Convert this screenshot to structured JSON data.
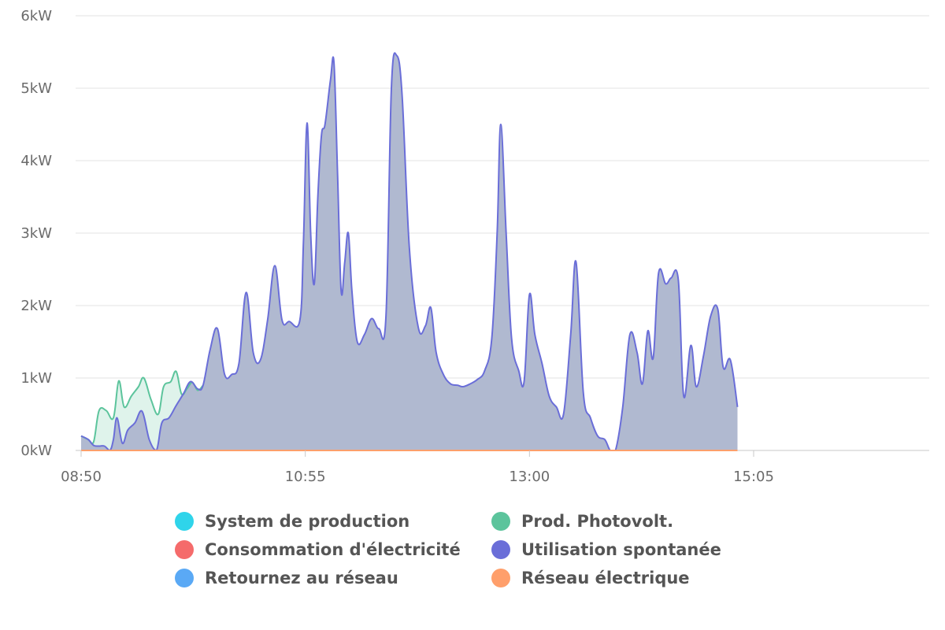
{
  "chart_data": {
    "type": "area",
    "ylim": [
      0,
      6
    ],
    "y_unit": "kW",
    "y_ticks": [
      {
        "value": 0,
        "label": "0kW"
      },
      {
        "value": 1,
        "label": "1kW"
      },
      {
        "value": 2,
        "label": "2kW"
      },
      {
        "value": 3,
        "label": "3kW"
      },
      {
        "value": 4,
        "label": "4kW"
      },
      {
        "value": 5,
        "label": "5kW"
      },
      {
        "value": 6,
        "label": "6kW"
      }
    ],
    "x_range": [
      "08:50",
      "16:45"
    ],
    "x_ticks": [
      "08:50",
      "10:55",
      "13:00",
      "15:05"
    ],
    "grid": true,
    "legend_placement": "bottom",
    "series": [
      {
        "name": "Prod. Photovolt.",
        "color": "#5cc49c",
        "fill": "#dff3eb",
        "points": [
          [
            "08:50",
            0.2
          ],
          [
            "08:54",
            0.15
          ],
          [
            "08:57",
            0.12
          ],
          [
            "09:00",
            0.55
          ],
          [
            "09:04",
            0.55
          ],
          [
            "09:08",
            0.45
          ],
          [
            "09:11",
            0.96
          ],
          [
            "09:14",
            0.6
          ],
          [
            "09:18",
            0.75
          ],
          [
            "09:22",
            0.88
          ],
          [
            "09:25",
            1.0
          ],
          [
            "09:29",
            0.7
          ],
          [
            "09:33",
            0.5
          ],
          [
            "09:36",
            0.88
          ],
          [
            "09:40",
            0.95
          ],
          [
            "09:43",
            1.09
          ],
          [
            "09:46",
            0.78
          ],
          [
            "09:49",
            0.85
          ],
          [
            "09:52",
            0.94
          ],
          [
            "09:55",
            0.83
          ],
          [
            "09:58",
            0.9
          ]
        ]
      },
      {
        "name": "Utilisation spontanée",
        "color": "#6a6ed8",
        "fill": "#b0b9d0",
        "points": [
          [
            "08:50",
            0.2
          ],
          [
            "08:54",
            0.15
          ],
          [
            "08:57",
            0.07
          ],
          [
            "09:00",
            0.06
          ],
          [
            "09:03",
            0.06
          ],
          [
            "09:06",
            0.0
          ],
          [
            "09:08",
            0.15
          ],
          [
            "09:10",
            0.45
          ],
          [
            "09:13",
            0.1
          ],
          [
            "09:16",
            0.28
          ],
          [
            "09:20",
            0.38
          ],
          [
            "09:24",
            0.54
          ],
          [
            "09:28",
            0.15
          ],
          [
            "09:32",
            0.0
          ],
          [
            "09:35",
            0.38
          ],
          [
            "09:39",
            0.45
          ],
          [
            "09:43",
            0.62
          ],
          [
            "09:47",
            0.78
          ],
          [
            "09:51",
            0.95
          ],
          [
            "09:55",
            0.85
          ],
          [
            "09:58",
            0.9
          ],
          [
            "10:02",
            1.4
          ],
          [
            "10:06",
            1.68
          ],
          [
            "10:10",
            1.05
          ],
          [
            "10:14",
            1.05
          ],
          [
            "10:18",
            1.2
          ],
          [
            "10:22",
            2.18
          ],
          [
            "10:26",
            1.35
          ],
          [
            "10:30",
            1.25
          ],
          [
            "10:34",
            1.8
          ],
          [
            "10:38",
            2.55
          ],
          [
            "10:42",
            1.8
          ],
          [
            "10:46",
            1.78
          ],
          [
            "10:52",
            1.8
          ],
          [
            "10:54",
            2.9
          ],
          [
            "10:56",
            4.52
          ],
          [
            "10:58",
            3.0
          ],
          [
            "11:00",
            2.3
          ],
          [
            "11:02",
            3.5
          ],
          [
            "11:04",
            4.35
          ],
          [
            "11:06",
            4.5
          ],
          [
            "11:09",
            5.1
          ],
          [
            "11:11",
            5.35
          ],
          [
            "11:13",
            3.8
          ],
          [
            "11:15",
            2.2
          ],
          [
            "11:17",
            2.6
          ],
          [
            "11:19",
            3.0
          ],
          [
            "11:21",
            2.2
          ],
          [
            "11:24",
            1.5
          ],
          [
            "11:28",
            1.6
          ],
          [
            "11:32",
            1.82
          ],
          [
            "11:36",
            1.68
          ],
          [
            "11:40",
            1.85
          ],
          [
            "11:43",
            5.0
          ],
          [
            "11:46",
            5.45
          ],
          [
            "11:49",
            4.9
          ],
          [
            "11:53",
            2.8
          ],
          [
            "11:58",
            1.7
          ],
          [
            "12:02",
            1.72
          ],
          [
            "12:05",
            1.97
          ],
          [
            "12:08",
            1.35
          ],
          [
            "12:12",
            1.05
          ],
          [
            "12:16",
            0.92
          ],
          [
            "12:20",
            0.9
          ],
          [
            "12:23",
            0.88
          ],
          [
            "12:27",
            0.92
          ],
          [
            "12:31",
            0.98
          ],
          [
            "12:35",
            1.1
          ],
          [
            "12:39",
            1.55
          ],
          [
            "12:42",
            3.0
          ],
          [
            "12:44",
            4.5
          ],
          [
            "12:47",
            3.0
          ],
          [
            "12:50",
            1.55
          ],
          [
            "12:54",
            1.1
          ],
          [
            "12:57",
            0.95
          ],
          [
            "13:00",
            2.15
          ],
          [
            "13:03",
            1.6
          ],
          [
            "13:07",
            1.2
          ],
          [
            "13:11",
            0.75
          ],
          [
            "13:15",
            0.6
          ],
          [
            "13:19",
            0.5
          ],
          [
            "13:23",
            1.6
          ],
          [
            "13:26",
            2.6
          ],
          [
            "13:30",
            0.8
          ],
          [
            "13:34",
            0.45
          ],
          [
            "13:38",
            0.2
          ],
          [
            "13:42",
            0.15
          ],
          [
            "13:45",
            0.0
          ],
          [
            "13:48",
            0.0
          ],
          [
            "13:52",
            0.6
          ],
          [
            "13:56",
            1.6
          ],
          [
            "14:00",
            1.35
          ],
          [
            "14:03",
            0.92
          ],
          [
            "14:06",
            1.65
          ],
          [
            "14:09",
            1.28
          ],
          [
            "14:12",
            2.45
          ],
          [
            "14:16",
            2.3
          ],
          [
            "14:19",
            2.38
          ],
          [
            "14:23",
            2.35
          ],
          [
            "14:26",
            0.75
          ],
          [
            "14:30",
            1.45
          ],
          [
            "14:33",
            0.88
          ],
          [
            "14:37",
            1.3
          ],
          [
            "14:41",
            1.85
          ],
          [
            "14:45",
            1.95
          ],
          [
            "14:48",
            1.15
          ],
          [
            "14:52",
            1.25
          ],
          [
            "14:56",
            0.6
          ]
        ]
      },
      {
        "name": "Réseau électrique",
        "color": "#ff9f6b",
        "fill": "none",
        "points": [
          [
            "08:50",
            0.0
          ],
          [
            "14:56",
            0.0
          ]
        ]
      }
    ]
  },
  "legend": [
    {
      "label": "System de production",
      "color": "#2fd4ea"
    },
    {
      "label": "Prod. Photovolt.",
      "color": "#5cc49c"
    },
    {
      "label": "Consommation d'électricité",
      "color": "#f56b6b"
    },
    {
      "label": "Utilisation spontanée",
      "color": "#6a6ed8"
    },
    {
      "label": "Retournez au réseau",
      "color": "#5aa9f5"
    },
    {
      "label": "Réseau électrique",
      "color": "#ff9f6b"
    }
  ]
}
